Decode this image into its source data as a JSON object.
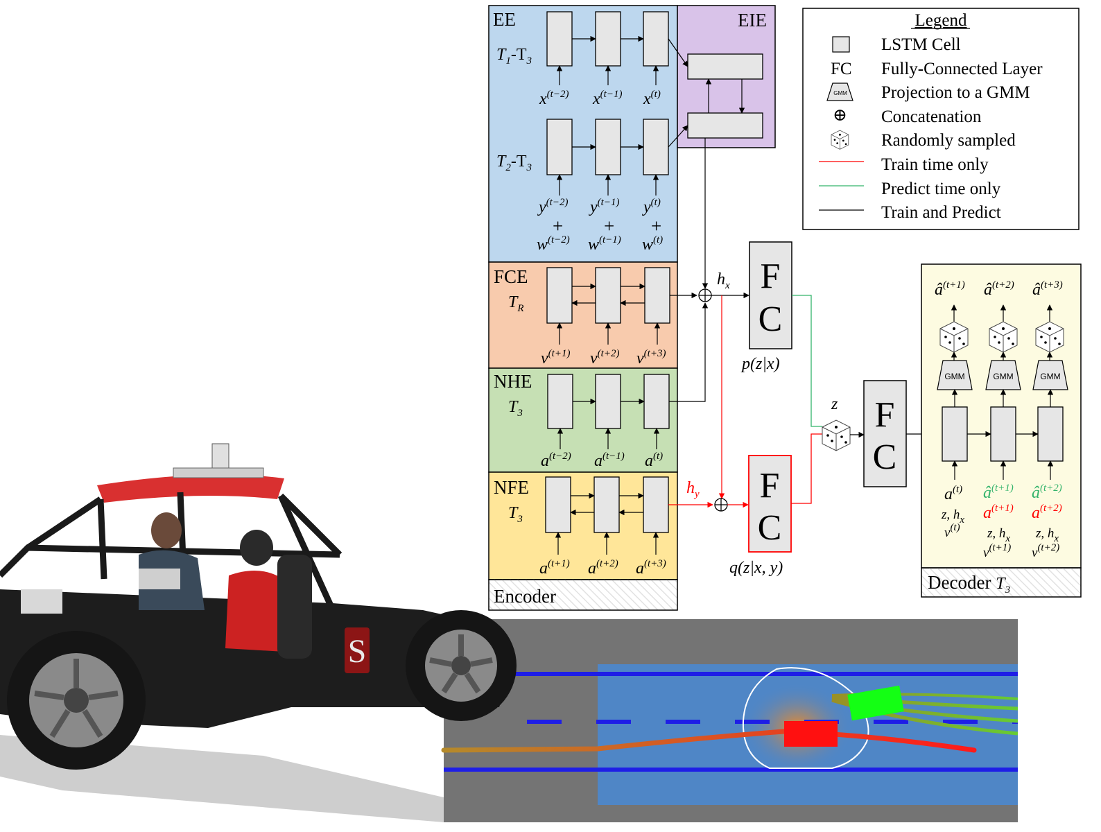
{
  "legend": {
    "title": "Legend",
    "items": [
      {
        "symbol": "LSTM Cell",
        "text": "LSTM Cell"
      },
      {
        "symbol": "FC",
        "text": "Fully-Connected Layer"
      },
      {
        "symbol": "GMM",
        "text": "Projection to a GMM"
      },
      {
        "symbol": "⊕",
        "text": "Concatenation"
      },
      {
        "symbol": "dice-icon",
        "text": "Randomly sampled"
      },
      {
        "symbol": "red-line",
        "text": "Train time only"
      },
      {
        "symbol": "green-line",
        "text": "Predict time only"
      },
      {
        "symbol": "black-line",
        "text": "Train and Predict"
      }
    ]
  },
  "encoder": {
    "ee": {
      "title": "EE",
      "row1": {
        "sub": "1",
        "sub2": "3"
      },
      "row2": {
        "sub": "2",
        "sub2": "3"
      }
    },
    "eie": {
      "title": "EIE"
    },
    "fce": {
      "title": "FCE",
      "var": "T",
      "sub": "R"
    },
    "nhe": {
      "title": "NHE",
      "var": "T",
      "sub": "3"
    },
    "nfe": {
      "title": "NFE",
      "var": "T",
      "sub": "3"
    },
    "label": "Encoder",
    "inputs": {
      "x": [
        "(t−2)",
        "(t−1)",
        "(t)"
      ],
      "y": [
        "(t−2)",
        "(t−1)",
        "(t)"
      ],
      "w": [
        "(t−2)",
        "(t−1)",
        "(t)"
      ],
      "v": [
        "(t+1)",
        "(t+2)",
        "(t+3)"
      ],
      "a_hist": [
        "(t−2)",
        "(t−1)",
        "(t)"
      ],
      "a_fut": [
        "(t+1)",
        "(t+2)",
        "(t+3)"
      ]
    }
  },
  "fc": {
    "letter1": "F",
    "letter2": "C",
    "prior": "p(z|x)",
    "posterior": "q(z|x, y)"
  },
  "hx": {
    "var": "h",
    "sub": "x"
  },
  "hy": {
    "var": "h",
    "sub": "y"
  },
  "z": "z",
  "decoder": {
    "label": "Decoder",
    "var": "T",
    "sub": "3",
    "gmm": "GMM",
    "outputs": [
      "(t+1)",
      "(t+2)",
      "(t+3)"
    ],
    "cols": [
      {
        "a": "(t)",
        "a_pred": "",
        "a_true": "",
        "zh": "z, h",
        "v": "(t)"
      },
      {
        "a": "",
        "a_pred": "(t+1)",
        "a_true": "(t+1)",
        "zh": "z, h",
        "v": "(t+1)"
      },
      {
        "a": "",
        "a_pred": "(t+2)",
        "a_true": "(t+2)",
        "zh": "z, h",
        "v": "(t+2)"
      }
    ]
  },
  "colors": {
    "ee": "#bdd7ee",
    "eie": "#d9c3e9",
    "fce": "#f8cbad",
    "nhe": "#c6e0b4",
    "nfe": "#ffe699",
    "decoder": "#fdfbe1",
    "lstm": "#e6e6e6",
    "train": "#ff0000",
    "predict": "#33b36b"
  }
}
